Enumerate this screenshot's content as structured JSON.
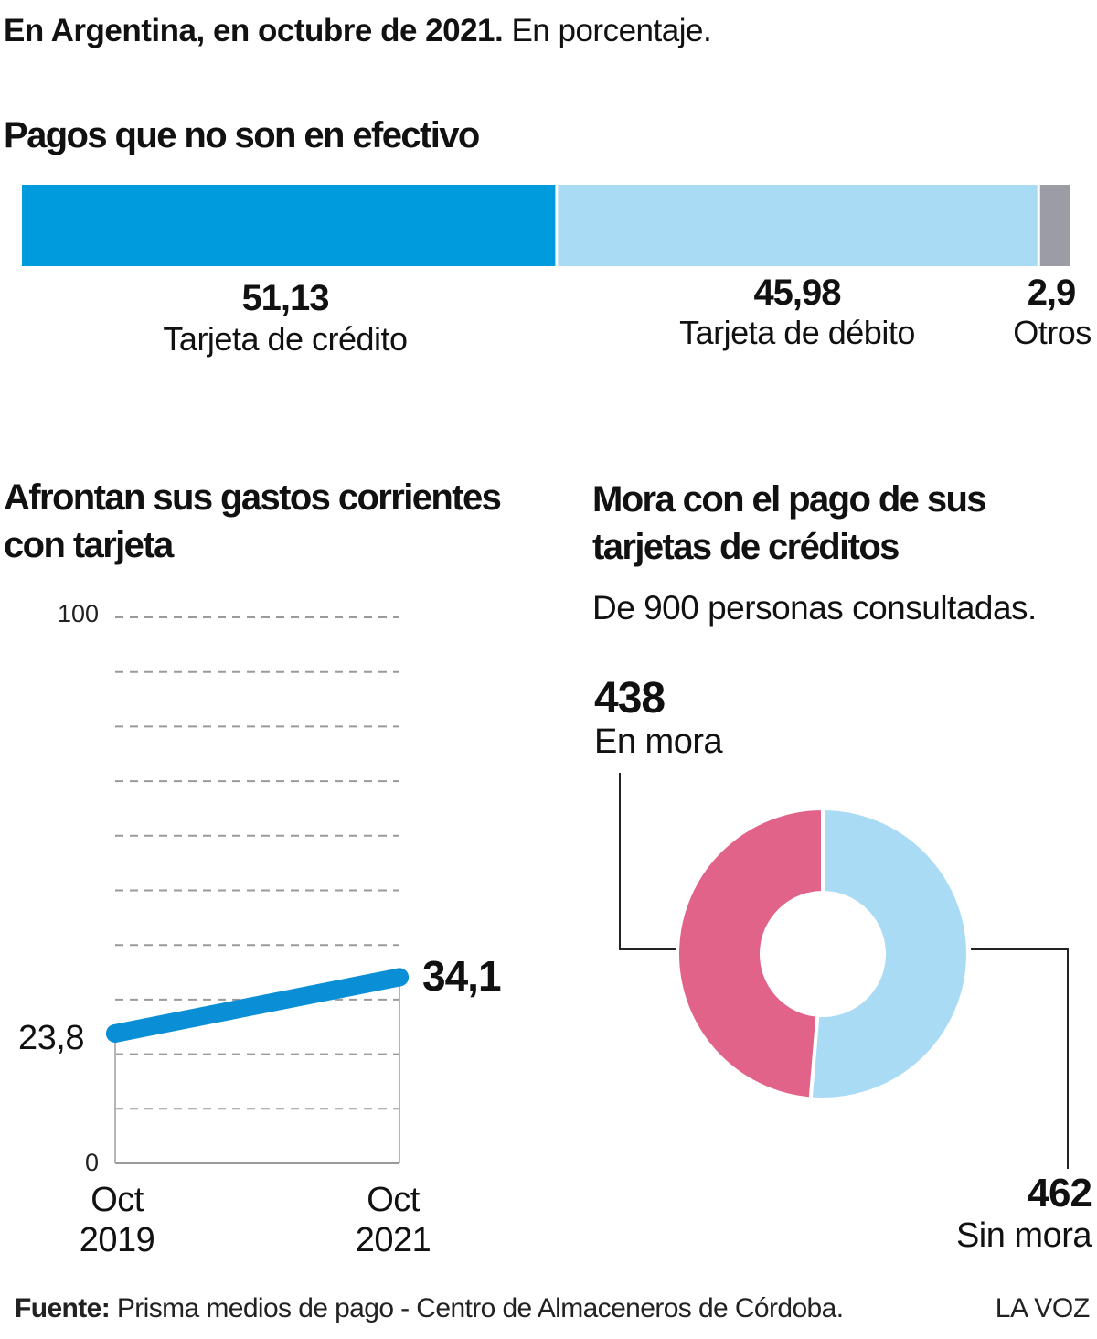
{
  "header": {
    "bold_part": "En Argentina, en octubre de 2021.",
    "regular_part": " En porcentaje."
  },
  "colors": {
    "credito": "#009bdc",
    "debito": "#a9dcf4",
    "otros": "#9c9ca4",
    "line": "#0a8fd6",
    "en_mora": "#e2638a",
    "sin_mora": "#a9dcf4"
  },
  "chart_data": [
    {
      "type": "bar",
      "orientation": "stacked-horizontal",
      "title": "Pagos que no son en efectivo",
      "segments": [
        {
          "value": 51.13,
          "value_label": "51,13",
          "label": "Tarjeta de crédito",
          "color": "#009bdc"
        },
        {
          "value": 45.98,
          "value_label": "45,98",
          "label": "Tarjeta de débito",
          "color": "#a9dcf4"
        },
        {
          "value": 2.9,
          "value_label": "2,9",
          "label": "Otros",
          "color": "#9c9ca4"
        }
      ]
    },
    {
      "type": "line",
      "title": "Afrontan sus gastos corrientes con tarjeta",
      "ylim": [
        0,
        100
      ],
      "y_ticks": [
        "100",
        "0"
      ],
      "grid": true,
      "categories": [
        {
          "line1": "Oct",
          "line2": "2019"
        },
        {
          "line1": "Oct",
          "line2": "2021"
        }
      ],
      "values": [
        23.8,
        34.1
      ],
      "value_labels": [
        "23,8",
        "34,1"
      ]
    },
    {
      "type": "pie",
      "style": "donut",
      "title": "Mora con el pago de sus tarjetas de créditos",
      "subtitle": "De 900 personas consultadas.",
      "slices": [
        {
          "value": 462,
          "value_label": "462",
          "label": "Sin mora",
          "color": "#a9dcf4"
        },
        {
          "value": 438,
          "value_label": "438",
          "label": "En mora",
          "color": "#e2638a"
        }
      ]
    }
  ],
  "footer": {
    "source_label": "Fuente:",
    "source_text": " Prisma medios de pago - Centro de Almaceneros de Córdoba.",
    "brand": "LA VOZ"
  }
}
